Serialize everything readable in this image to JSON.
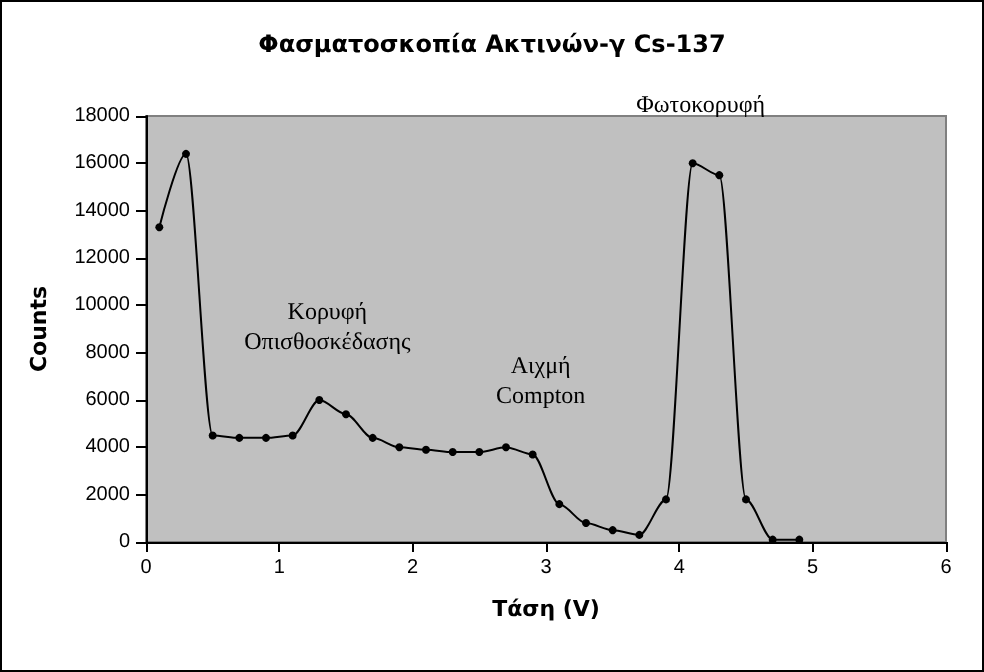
{
  "chart_data": {
    "type": "line",
    "title": "Φασματοσκοπία Ακτινών-γ Cs-137",
    "xlabel": "Τάση (V)",
    "ylabel": "Counts",
    "x": [
      0.1,
      0.3,
      0.5,
      0.7,
      0.9,
      1.1,
      1.3,
      1.5,
      1.7,
      1.9,
      2.1,
      2.3,
      2.5,
      2.7,
      2.9,
      3.1,
      3.3,
      3.5,
      3.7,
      3.9,
      4.1,
      4.3,
      4.5,
      4.7,
      4.9
    ],
    "series": [
      {
        "color": "#000000",
        "values": [
          13300,
          16400,
          4500,
          4400,
          4400,
          4500,
          6000,
          5400,
          4400,
          4000,
          3900,
          3800,
          3800,
          4000,
          3700,
          1600,
          800,
          500,
          300,
          1800,
          16000,
          15500,
          1800,
          100,
          100
        ]
      }
    ],
    "xlim": [
      0,
      6
    ],
    "xticks": [
      0,
      1,
      2,
      3,
      4,
      5,
      6
    ],
    "ylim": [
      0,
      18000
    ],
    "yticks": [
      0,
      2000,
      4000,
      6000,
      8000,
      10000,
      12000,
      14000,
      16000,
      18000
    ],
    "grid": false,
    "marker": "circle",
    "line_style": "solid",
    "annotations": [
      {
        "text": "Κορυφή\nΟπισθοσκέδασης",
        "x": 1.3,
        "y": 6000
      },
      {
        "text": "Αιχμή\nCompton",
        "x": 2.9,
        "y": 3700
      },
      {
        "text": "Φωτοκορυφή",
        "x": 4.1,
        "y": 16000
      }
    ]
  }
}
